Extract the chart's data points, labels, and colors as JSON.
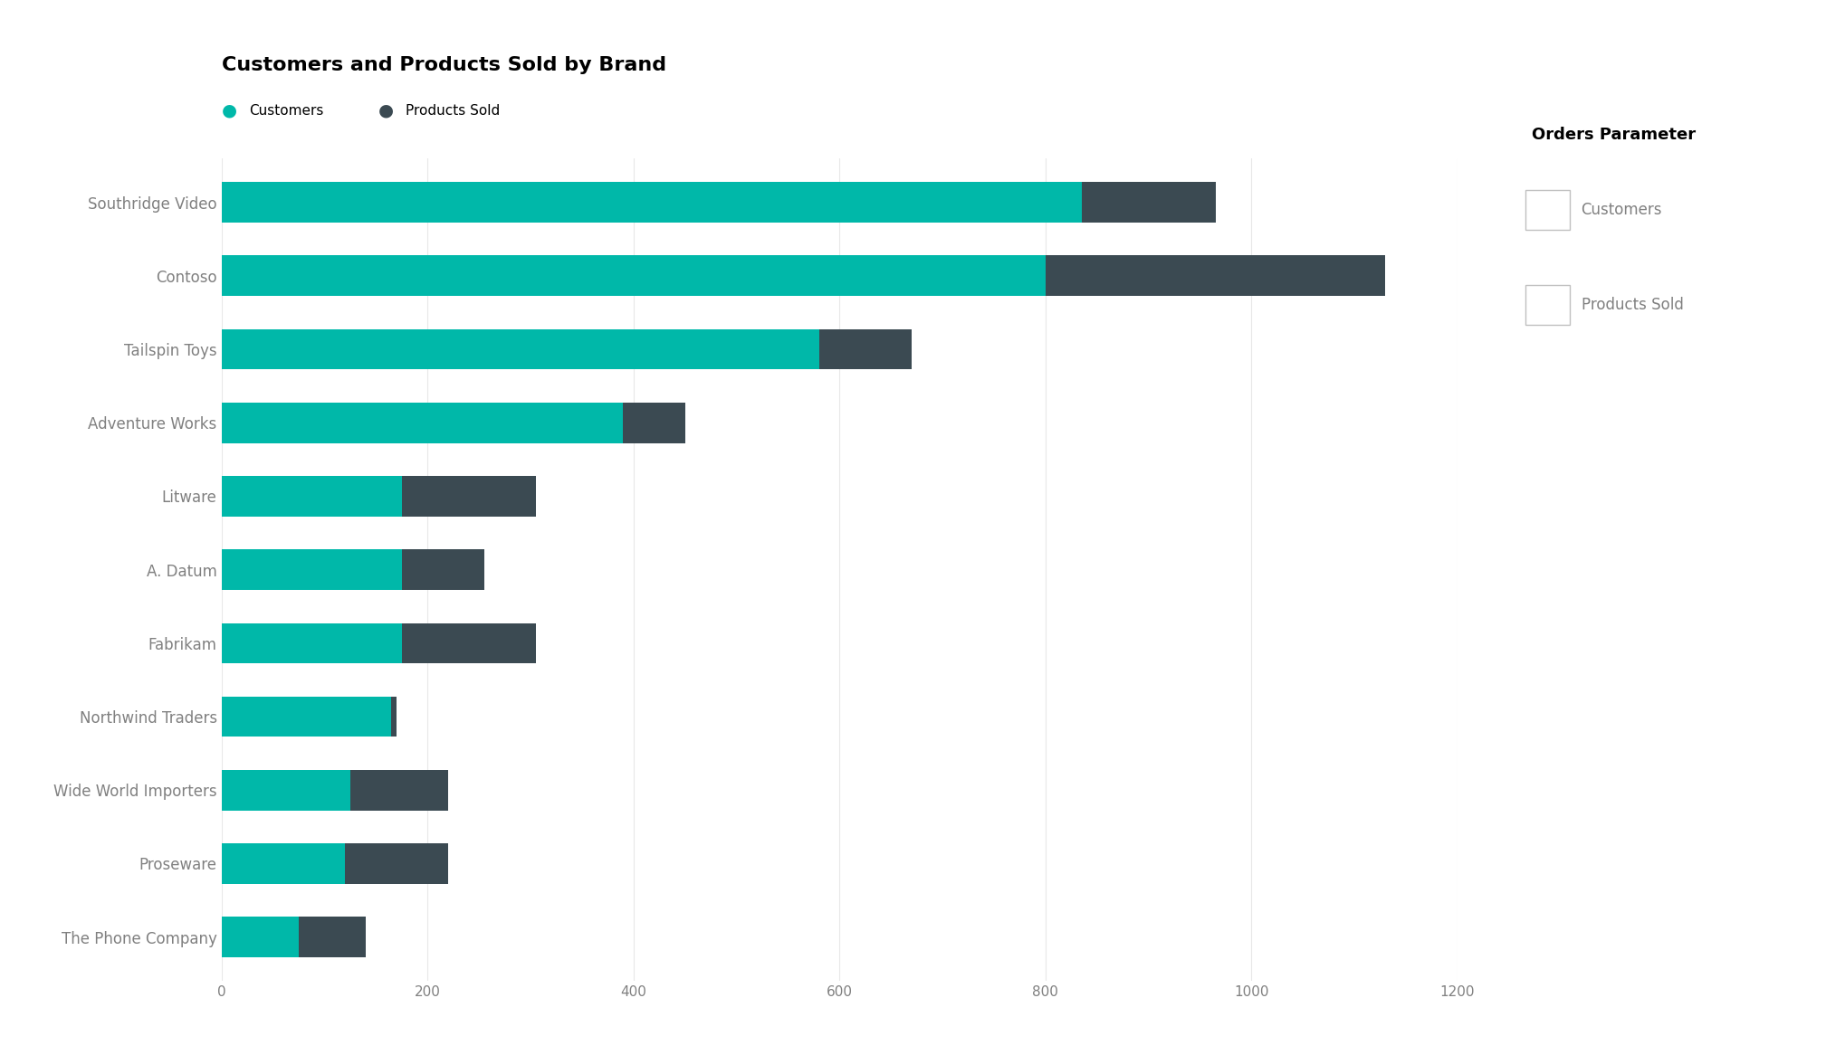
{
  "title": "Customers and Products Sold by Brand",
  "brands": [
    "Southridge Video",
    "Contoso",
    "Tailspin Toys",
    "Adventure Works",
    "Litware",
    "A. Datum",
    "Fabrikam",
    "Northwind Traders",
    "Wide World Importers",
    "Proseware",
    "The Phone Company"
  ],
  "customers": [
    835,
    800,
    580,
    390,
    175,
    175,
    175,
    165,
    125,
    120,
    75
  ],
  "products_sold": [
    130,
    330,
    90,
    60,
    130,
    80,
    130,
    5,
    95,
    100,
    65
  ],
  "customer_color": "#00B8A9",
  "products_color": "#3B4A52",
  "background_color": "#FFFFFF",
  "xlim": [
    0,
    1200
  ],
  "xticks": [
    0,
    200,
    400,
    600,
    800,
    1000,
    1200
  ],
  "legend_title": "Orders Parameter",
  "legend_labels": [
    "Customers",
    "Products Sold"
  ],
  "title_fontsize": 16,
  "bar_height": 0.55
}
